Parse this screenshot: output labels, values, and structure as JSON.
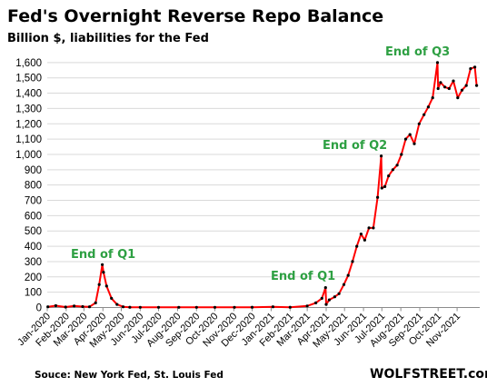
{
  "chart_data": {
    "type": "line",
    "title": "Fed's Overnight  Reverse Repo Balance",
    "subtitle": "Billion $, liabilities for the Fed",
    "ylim": [
      0,
      1700
    ],
    "yticks": [
      0,
      100,
      200,
      300,
      400,
      500,
      600,
      700,
      800,
      900,
      1000,
      1100,
      1200,
      1300,
      1400,
      1500,
      1600
    ],
    "ytick_labels": [
      "0",
      "100",
      "200",
      "300",
      "400",
      "500",
      "600",
      "700",
      "800",
      "900",
      "1,000",
      "1,100",
      "1,200",
      "1,300",
      "1,400",
      "1,500",
      "1,600"
    ],
    "xticks": [
      "Jan-2020",
      "Feb-2020",
      "Mar-2020",
      "Apr-2020",
      "May-2020",
      "Jun-2020",
      "Jul-2020",
      "Aug-2020",
      "Sep-2020",
      "Oct-2020",
      "Nov-2020",
      "Dec-2020",
      "Jan-2021",
      "Feb-2021",
      "Mar-2021",
      "Apr-2021",
      "May-2021",
      "Jun-2021",
      "Jul-2021",
      "Aug-2021",
      "Sep-2021",
      "Oct-2021",
      "Nov-2021"
    ],
    "grid": true,
    "series": [
      {
        "color": "#ff0000",
        "marker_color": "#000000",
        "x": [
          "2020-01-02",
          "2020-01-15",
          "2020-01-31",
          "2020-02-14",
          "2020-02-28",
          "2020-03-10",
          "2020-03-20",
          "2020-03-26",
          "2020-03-31",
          "2020-04-02",
          "2020-04-07",
          "2020-04-15",
          "2020-04-24",
          "2020-05-04",
          "2020-05-15",
          "2020-06-01",
          "2020-07-01",
          "2020-08-03",
          "2020-09-01",
          "2020-10-01",
          "2020-11-02",
          "2020-12-01",
          "2021-01-04",
          "2021-02-01",
          "2021-03-01",
          "2021-03-15",
          "2021-03-25",
          "2021-03-31",
          "2021-04-01",
          "2021-04-06",
          "2021-04-15",
          "2021-04-22",
          "2021-04-30",
          "2021-05-07",
          "2021-05-14",
          "2021-05-21",
          "2021-05-28",
          "2021-06-03",
          "2021-06-10",
          "2021-06-17",
          "2021-06-24",
          "2021-06-30",
          "2021-07-01",
          "2021-07-06",
          "2021-07-12",
          "2021-07-19",
          "2021-07-26",
          "2021-08-02",
          "2021-08-09",
          "2021-08-16",
          "2021-08-23",
          "2021-08-31",
          "2021-09-08",
          "2021-09-15",
          "2021-09-22",
          "2021-09-30",
          "2021-10-01",
          "2021-10-05",
          "2021-10-12",
          "2021-10-19",
          "2021-10-26",
          "2021-11-02",
          "2021-11-09",
          "2021-11-16",
          "2021-11-23",
          "2021-11-30",
          "2021-12-03"
        ],
        "values": [
          5,
          12,
          3,
          10,
          6,
          5,
          30,
          150,
          280,
          230,
          140,
          60,
          20,
          5,
          2,
          1,
          1,
          1,
          1,
          1,
          1,
          2,
          5,
          2,
          10,
          30,
          60,
          130,
          20,
          50,
          70,
          90,
          150,
          210,
          300,
          400,
          480,
          440,
          520,
          520,
          720,
          990,
          780,
          790,
          860,
          900,
          930,
          1000,
          1100,
          1130,
          1070,
          1200,
          1260,
          1310,
          1370,
          1600,
          1430,
          1470,
          1440,
          1430,
          1480,
          1370,
          1420,
          1450,
          1560,
          1570,
          1450
        ]
      }
    ],
    "annotations": [
      "End of Q1",
      "End of Q1",
      "End of Q2",
      "End of Q3"
    ],
    "source": "Souce: New York Fed, St. Louis Fed",
    "brand": "WOLFSTREET.com"
  }
}
